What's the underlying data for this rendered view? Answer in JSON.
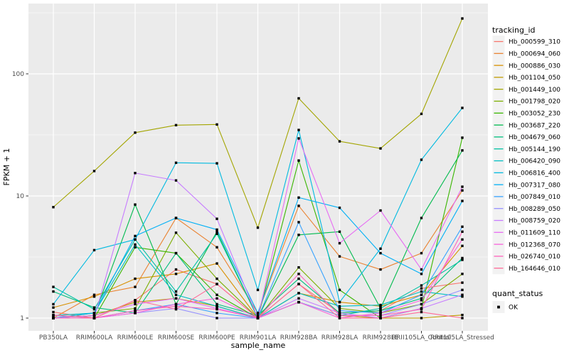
{
  "figure": {
    "background": "#FFFFFF",
    "panel_background": "#EBEBEB",
    "grid_color": "#FFFFFF",
    "tick_mark_color": "#333333",
    "tick_label_color": "#4D4D4D",
    "point_color": "#000000",
    "legend_key_background": "#F2F2F2"
  },
  "legend": {
    "tracking_title": "tracking_id",
    "quant_title": "quant_status",
    "quant_items": [
      {
        "label": "OK",
        "marker": "black-filled-square"
      }
    ]
  },
  "chart_data": {
    "type": "line",
    "title": "",
    "xlabel": "sample_name",
    "ylabel": "FPKM + 1",
    "y_scale": "log10",
    "ylim": [
      1,
      377
    ],
    "y_major_ticks": [
      1,
      10,
      100
    ],
    "y_tick_labels": [
      "1",
      "10",
      "100"
    ],
    "y_minor_ticks": [
      3.162,
      31.62,
      316.2
    ],
    "grid": true,
    "legend_position": "right",
    "point_shape": "filled-square",
    "categories": [
      "PB350LA",
      "RRIM600LA",
      "RRIM600LE",
      "RRIM600SE",
      "RRIM600PE",
      "RRIM901LA",
      "RRIM928BA",
      "RRIM928LA",
      "RRIM928LE",
      "RRII105LA_Control",
      "RRII105LA_Stressed"
    ],
    "series": [
      {
        "name": "Hb_000599_310",
        "color": "#F8766D",
        "values": [
          1.12,
          1.0,
          1.4,
          2.5,
          1.9,
          1.0,
          1.9,
          1.1,
          1.15,
          1.75,
          1.95
        ]
      },
      {
        "name": "Hb_000694_060",
        "color": "#EA8331",
        "values": [
          1.0,
          1.55,
          1.8,
          6.6,
          3.8,
          1.1,
          8.3,
          3.2,
          2.5,
          3.4,
          11.1
        ]
      },
      {
        "name": "Hb_000886_030",
        "color": "#D89000",
        "values": [
          1.22,
          1.5,
          2.1,
          2.3,
          2.8,
          1.0,
          1.6,
          1.35,
          1.25,
          1.55,
          3.9
        ]
      },
      {
        "name": "Hb_001104_050",
        "color": "#C09B00",
        "values": [
          1.0,
          1.05,
          1.35,
          1.45,
          1.25,
          1.0,
          1.35,
          1.05,
          1.0,
          1.0,
          1.06
        ]
      },
      {
        "name": "Hb_001449_100",
        "color": "#A3A500",
        "values": [
          8.1,
          16,
          33,
          38,
          38.5,
          5.5,
          63,
          28,
          24.5,
          47,
          284
        ]
      },
      {
        "name": "Hb_001798_020",
        "color": "#7CAE00",
        "values": [
          1.0,
          1.1,
          1.2,
          5.0,
          2.1,
          1.0,
          2.6,
          1.2,
          1.1,
          1.3,
          2.3
        ]
      },
      {
        "name": "Hb_003052_230",
        "color": "#39B600",
        "values": [
          1.0,
          1.0,
          3.8,
          3.4,
          1.55,
          1.0,
          19.5,
          1.7,
          1.0,
          1.2,
          30
        ]
      },
      {
        "name": "Hb_003687_220",
        "color": "#00BB4E",
        "values": [
          1.0,
          1.05,
          8.5,
          1.3,
          5.1,
          1.0,
          4.8,
          5.1,
          1.2,
          6.6,
          23.6
        ]
      },
      {
        "name": "Hb_004679_060",
        "color": "#00BF7D",
        "values": [
          1.65,
          1.22,
          1.1,
          3.4,
          1.3,
          1.05,
          2.1,
          1.1,
          1.15,
          1.45,
          3.1
        ]
      },
      {
        "name": "Hb_005144_190",
        "color": "#00C1A3",
        "values": [
          1.8,
          1.18,
          4.4,
          1.65,
          4.9,
          1.0,
          1.35,
          1.05,
          1.2,
          1.85,
          3.0
        ]
      },
      {
        "name": "Hb_006420_090",
        "color": "#00BFC4",
        "values": [
          1.05,
          1.1,
          4.0,
          1.55,
          1.25,
          1.0,
          1.6,
          1.25,
          1.28,
          1.65,
          1.5
        ]
      },
      {
        "name": "Hb_006816_400",
        "color": "#00BAE0",
        "values": [
          1.3,
          3.6,
          4.4,
          18.7,
          18.5,
          1.7,
          34.7,
          1.35,
          3.7,
          19.8,
          52.6
        ]
      },
      {
        "name": "Hb_007317_080",
        "color": "#00B0F6",
        "values": [
          1.0,
          1.1,
          4.7,
          6.6,
          5.3,
          1.1,
          9.7,
          8.0,
          3.4,
          2.3,
          9.1
        ]
      },
      {
        "name": "Hb_007849_010",
        "color": "#35A2FF",
        "values": [
          1.0,
          1.0,
          1.15,
          1.3,
          1.1,
          1.0,
          6.1,
          1.15,
          1.1,
          1.55,
          5.6
        ]
      },
      {
        "name": "Hb_008289_050",
        "color": "#9590FF",
        "values": [
          1.05,
          1.0,
          1.1,
          1.2,
          1.0,
          1.0,
          1.35,
          1.05,
          1.05,
          1.3,
          1.7
        ]
      },
      {
        "name": "Hb_008759_020",
        "color": "#C77CFF",
        "values": [
          1.0,
          1.0,
          15.4,
          13.4,
          6.5,
          1.0,
          1.45,
          1.1,
          1.0,
          1.2,
          1.55
        ]
      },
      {
        "name": "Hb_011609_110",
        "color": "#E76BF3",
        "values": [
          1.0,
          1.05,
          1.3,
          1.45,
          1.2,
          1.0,
          29.6,
          4.1,
          7.6,
          2.5,
          11.9
        ]
      },
      {
        "name": "Hb_012368_070",
        "color": "#FA62DB",
        "values": [
          1.0,
          1.0,
          1.1,
          1.3,
          1.45,
          1.0,
          1.35,
          1.0,
          1.1,
          1.4,
          4.4
        ]
      },
      {
        "name": "Hb_026740_010",
        "color": "#FF62BC",
        "values": [
          1.0,
          1.0,
          1.15,
          1.25,
          1.18,
          1.0,
          2.3,
          1.05,
          1.05,
          1.18,
          5.1
        ]
      },
      {
        "name": "Hb_164646_010",
        "color": "#FF6A98",
        "values": [
          1.06,
          1.0,
          1.4,
          1.18,
          1.9,
          1.0,
          1.9,
          1.0,
          1.0,
          1.12,
          1.0
        ]
      }
    ],
    "quant_status": "OK"
  }
}
